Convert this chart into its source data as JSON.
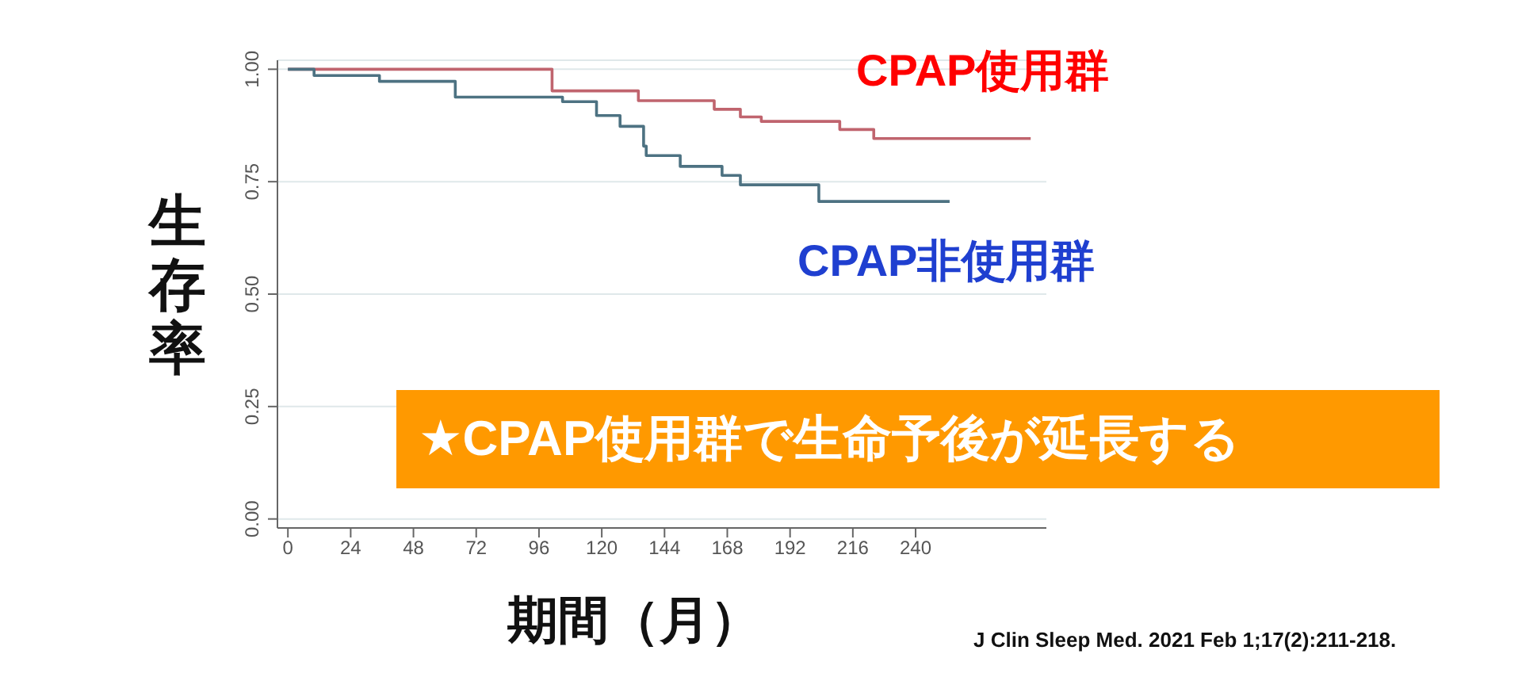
{
  "chart_data": {
    "type": "step",
    "ylabel": "生存率",
    "xlabel": "期間（月）",
    "series": [
      {
        "name": "CPAP使用群",
        "color": "#c0646e",
        "x": [
          0,
          101,
          134,
          163,
          173,
          181,
          211,
          224,
          284
        ],
        "values": [
          1.0,
          0.952,
          0.93,
          0.911,
          0.894,
          0.884,
          0.866,
          0.846,
          0.846
        ]
      },
      {
        "name": "CPAP非使用群",
        "color": "#4d7282",
        "x": [
          0,
          10,
          35,
          64,
          105,
          118,
          127,
          136,
          137,
          150,
          166,
          173,
          203,
          253
        ],
        "values": [
          1.0,
          0.986,
          0.973,
          0.938,
          0.928,
          0.897,
          0.873,
          0.829,
          0.808,
          0.784,
          0.764,
          0.743,
          0.706,
          0.706
        ]
      }
    ],
    "xlim": [
      -4,
      290
    ],
    "xticks": [
      0,
      24,
      48,
      72,
      96,
      120,
      144,
      168,
      192,
      216,
      240
    ],
    "ylim": [
      -0.02,
      1.02
    ],
    "yticks": [
      {
        "value": 0,
        "label": "0.00"
      },
      {
        "value": 0.25,
        "label": "0.25"
      },
      {
        "value": 0.5,
        "label": "0.50"
      },
      {
        "value": 0.75,
        "label": "0.75"
      },
      {
        "value": 1,
        "label": "1.00"
      }
    ],
    "grid": "y",
    "legend": false,
    "marker": "none",
    "line_style": "solid",
    "annotations": [
      "★CPAP使用群で生命予後が延長する",
      "J Clin Sleep Med. 2021 Feb 1;17(2):211-218."
    ]
  }
}
